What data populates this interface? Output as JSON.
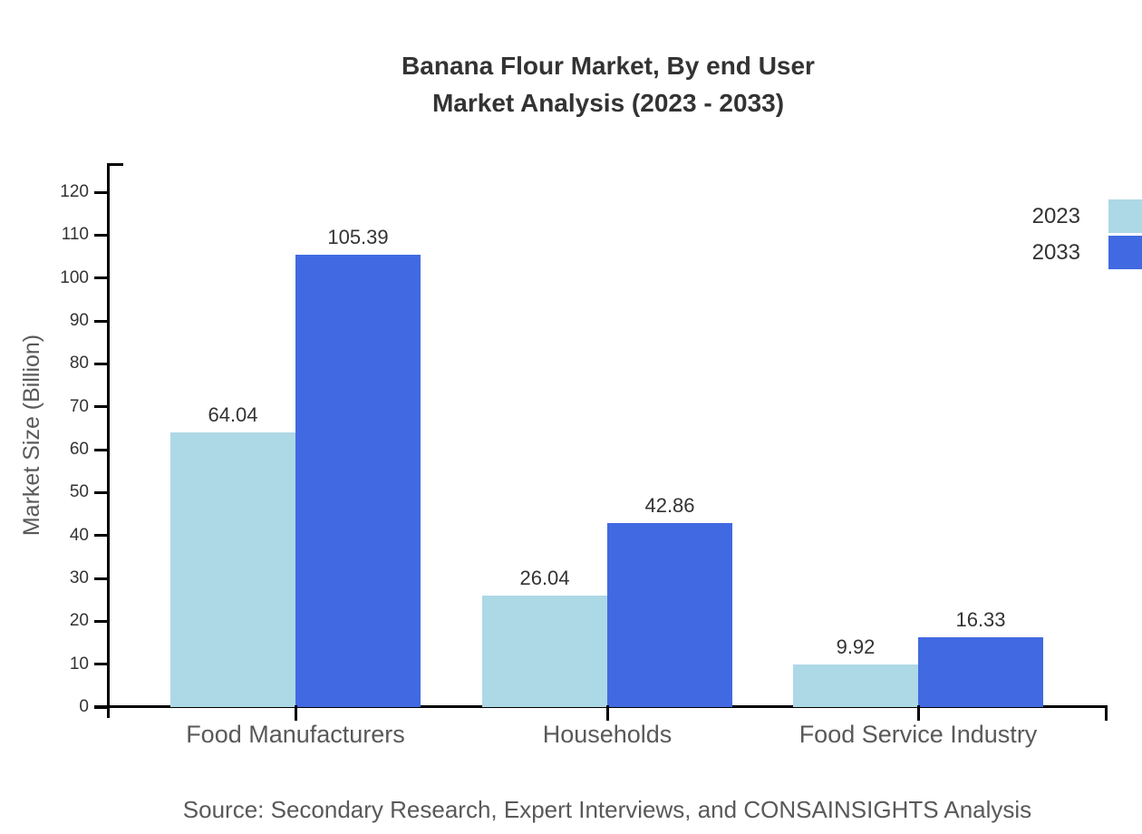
{
  "title": {
    "line1": "Banana Flour Market, By end User",
    "line2": "Market Analysis (2023 - 2033)"
  },
  "source_text": "Source: Secondary Research, Expert Interviews, and CONSAINSIGHTS Analysis",
  "legend": {
    "items": [
      {
        "label": "2023",
        "color": "#ADD8E6"
      },
      {
        "label": "2033",
        "color": "#4169E1"
      }
    ]
  },
  "chart_data": {
    "type": "bar",
    "title": "Banana Flour Market, By end User Market Analysis (2023 - 2033)",
    "categories": [
      "Food Manufacturers",
      "Households",
      "Food Service Industry"
    ],
    "series": [
      {
        "name": "2023",
        "color": "#ADD8E6",
        "values": [
          64.04,
          26.04,
          9.92
        ]
      },
      {
        "name": "2033",
        "color": "#4169E1",
        "values": [
          105.39,
          42.86,
          16.33
        ]
      }
    ],
    "value_labels": [
      "64.04",
      "105.39",
      "26.04",
      "42.86",
      "9.92",
      "16.33"
    ],
    "xlabel": "",
    "ylabel": "Market Size (Billion)",
    "ylim": [
      0,
      127
    ],
    "yticks": [
      0,
      10,
      20,
      30,
      40,
      50,
      60,
      70,
      80,
      90,
      100,
      110,
      120
    ],
    "grid": false,
    "legend_position": "top-right",
    "bar_value_labels_shown": true,
    "axis_color": "#000000",
    "text_color_primary": "#333333",
    "text_color_secondary": "#595959"
  }
}
